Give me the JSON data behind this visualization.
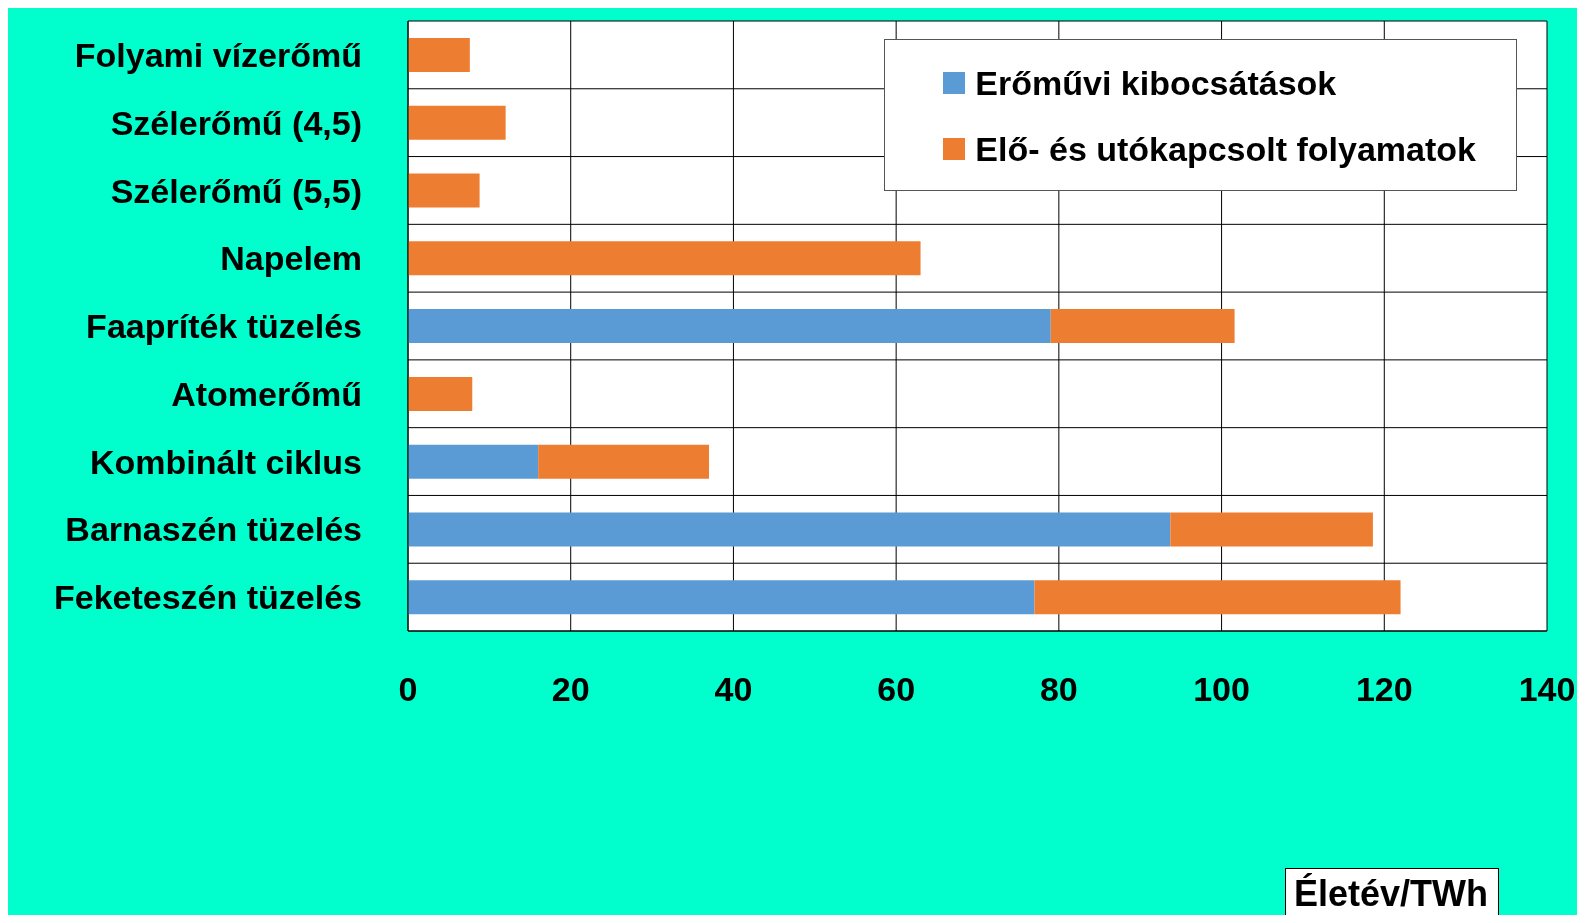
{
  "chart_data": {
    "type": "bar",
    "orientation": "horizontal",
    "stacked": true,
    "xlabel": "Életév/TWh",
    "categories": [
      "Folyami vízerőmű",
      "Szélerőmű (4,5)",
      "Szélerőmű (5,5)",
      "Napelem",
      "Faapríték tüzelés",
      "Atomerőmű",
      "Kombinált ciklus",
      "Barnaszén tüzelés",
      "Feketeszén tüzelés"
    ],
    "series": [
      {
        "name": "Erőművi kibocsátások",
        "color": "#5b9bd5",
        "values": [
          0,
          0,
          0,
          0,
          79,
          0,
          16,
          93.7,
          77
        ]
      },
      {
        "name": "Elő- és utókapcsolt folyamatok",
        "color": "#ed7d31",
        "values": [
          7.6,
          12,
          8.8,
          63,
          22.6,
          7.9,
          21,
          24.9,
          45
        ]
      }
    ],
    "xlim": [
      0,
      140
    ],
    "xticks": [
      0,
      20,
      40,
      60,
      80,
      100,
      120,
      140
    ],
    "grid": true,
    "legend": "top right"
  }
}
